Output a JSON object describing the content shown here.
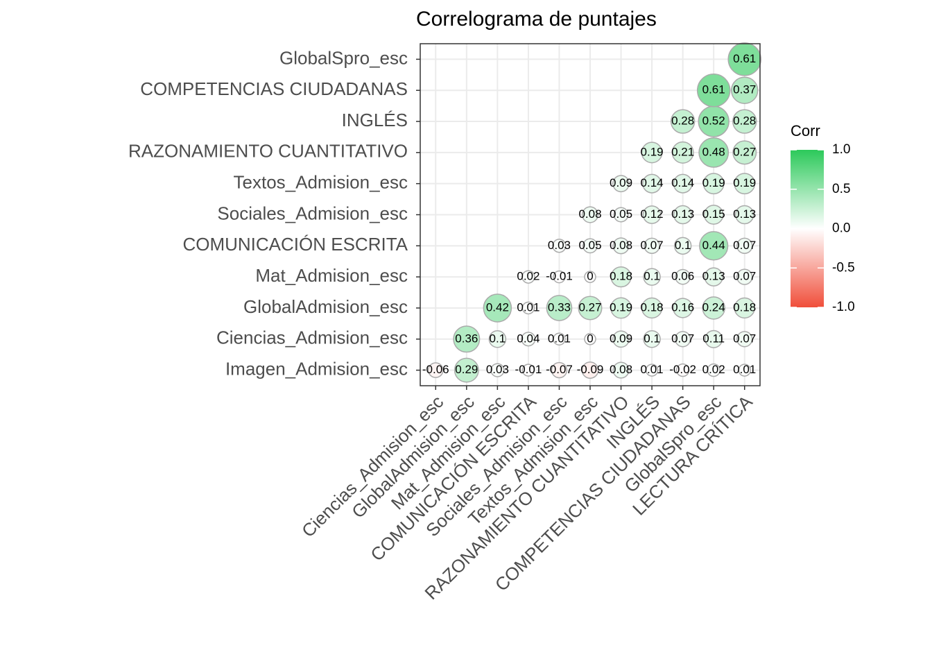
{
  "chart_data": {
    "type": "correlogram",
    "title": "Correlograma de puntajes",
    "x_categories": [
      "Ciencias_Admision_esc",
      "GlobalAdmision_esc",
      "Mat_Admision_esc",
      "COMUNICACIÓN ESCRITA",
      "Sociales_Admision_esc",
      "Textos_Admision_esc",
      "RAZONAMIENTO CUANTITATIVO",
      "INGLÉS",
      "COMPETENCIAS CIUDADANAS",
      "GlobalSpro_esc",
      "LECTURA CRÍTICA"
    ],
    "y_categories": [
      "Imagen_Admision_esc",
      "Ciencias_Admision_esc",
      "GlobalAdmision_esc",
      "Mat_Admision_esc",
      "COMUNICACIÓN ESCRITA",
      "Sociales_Admision_esc",
      "Textos_Admision_esc",
      "RAZONAMIENTO CUANTITATIVO",
      "INGLÉS",
      "COMPETENCIAS CIUDADANAS",
      "GlobalSpro_esc"
    ],
    "values": [
      [
        -0.06,
        0.29,
        0.03,
        -0.01,
        -0.07,
        -0.09,
        0.08,
        0.01,
        -0.02,
        0.02,
        0.01
      ],
      [
        null,
        0.36,
        0.1,
        0.04,
        0.01,
        0,
        0.09,
        0.1,
        0.07,
        0.11,
        0.07
      ],
      [
        null,
        null,
        0.42,
        0.01,
        0.33,
        0.27,
        0.19,
        0.18,
        0.16,
        0.24,
        0.18
      ],
      [
        null,
        null,
        null,
        0.02,
        -0.01,
        0,
        0.18,
        0.1,
        0.06,
        0.13,
        0.07
      ],
      [
        null,
        null,
        null,
        null,
        0.03,
        0.05,
        0.08,
        0.07,
        0.1,
        0.44,
        0.07
      ],
      [
        null,
        null,
        null,
        null,
        null,
        0.08,
        0.05,
        0.12,
        0.13,
        0.15,
        0.13
      ],
      [
        null,
        null,
        null,
        null,
        null,
        null,
        0.09,
        0.14,
        0.14,
        0.19,
        0.19
      ],
      [
        null,
        null,
        null,
        null,
        null,
        null,
        null,
        0.19,
        0.21,
        0.48,
        0.27
      ],
      [
        null,
        null,
        null,
        null,
        null,
        null,
        null,
        null,
        0.28,
        0.52,
        0.28
      ],
      [
        null,
        null,
        null,
        null,
        null,
        null,
        null,
        null,
        null,
        0.61,
        0.37
      ],
      [
        null,
        null,
        null,
        null,
        null,
        null,
        null,
        null,
        null,
        null,
        0.61
      ]
    ],
    "legend_title": "Corr",
    "legend_lim": [
      -1,
      1
    ],
    "legend_ticks": [
      {
        "value": 1,
        "label": "1.0"
      },
      {
        "value": 0.5,
        "label": "0.5"
      },
      {
        "value": 0,
        "label": "0.0"
      },
      {
        "value": -0.5,
        "label": "-0.5"
      },
      {
        "value": -1,
        "label": "-1.0"
      }
    ],
    "colors": {
      "low": "#F04E3A",
      "mid": "#FFFFFF",
      "high": "#2CC95A"
    },
    "grid": true
  }
}
